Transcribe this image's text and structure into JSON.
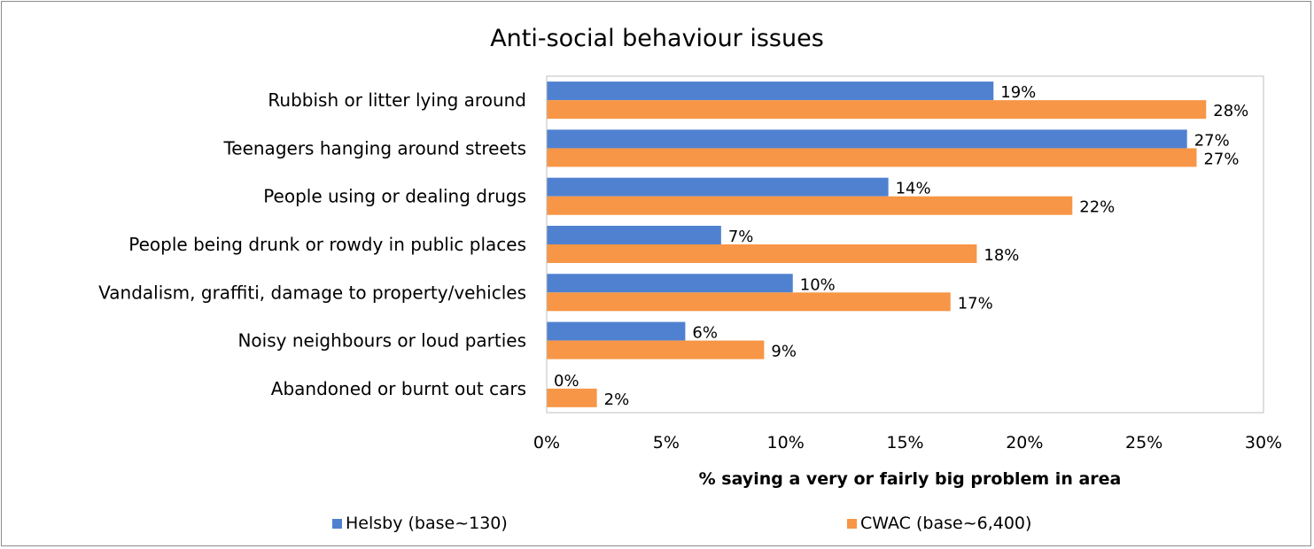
{
  "chart_data": {
    "type": "bar",
    "orientation": "horizontal",
    "title": "Anti-social behaviour issues",
    "xlabel": "% saying a very or fairly big problem in area",
    "ylabel": "",
    "xlim": [
      0,
      30
    ],
    "x_ticks": [
      "0%",
      "5%",
      "10%",
      "15%",
      "20%",
      "25%",
      "30%"
    ],
    "grid": false,
    "legend_position": "bottom",
    "categories": [
      "Rubbish or litter lying around",
      "Teenagers hanging around streets",
      "People using or dealing drugs",
      "People being drunk or rowdy in public places",
      "Vandalism, graffiti, damage to property/vehicles",
      "Noisy neighbours or loud parties",
      "Abandoned or burnt out cars"
    ],
    "series": [
      {
        "name": "Helsby (base~130)",
        "color": "#4f81d0",
        "values": [
          18.7,
          26.8,
          14.3,
          7.3,
          10.3,
          5.8,
          0
        ],
        "labels": [
          "19%",
          "27%",
          "14%",
          "7%",
          "10%",
          "6%",
          "0%"
        ]
      },
      {
        "name": "CWAC (base~6,400)",
        "color": "#f79646",
        "values": [
          27.6,
          27.2,
          22.0,
          18.0,
          16.9,
          9.1,
          2.1
        ],
        "labels": [
          "28%",
          "27%",
          "22%",
          "18%",
          "17%",
          "9%",
          "2%"
        ]
      }
    ]
  }
}
